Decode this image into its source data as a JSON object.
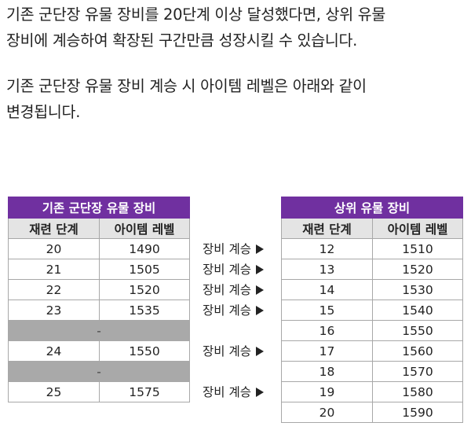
{
  "paragraphs": [
    [
      "기존 군단장 유물 장비를 20단계 이상 달성했다면, 상위 유물",
      "장비에 계승하여 확장된 구간만큼 성장시킬 수 있습니다."
    ],
    [
      "기존 군단장 유물 장비 계승 시 아이템 레벨은 아래와 같이",
      "변경됩니다."
    ]
  ],
  "left_table": {
    "title": "기존 군단장 유물 장비",
    "headers": [
      "재련 단계",
      "아이템 레벨"
    ],
    "rows": [
      {
        "stage": "20",
        "level": "1490"
      },
      {
        "stage": "21",
        "level": "1505"
      },
      {
        "stage": "22",
        "level": "1520"
      },
      {
        "stage": "23",
        "level": "1535"
      },
      {
        "gap": "-"
      },
      {
        "stage": "24",
        "level": "1550"
      },
      {
        "gap": "-"
      },
      {
        "stage": "25",
        "level": "1575"
      }
    ]
  },
  "right_table": {
    "title": "상위 유물 장비",
    "headers": [
      "재련 단계",
      "아이템 레벨"
    ],
    "rows": [
      {
        "stage": "12",
        "level": "1510"
      },
      {
        "stage": "13",
        "level": "1520"
      },
      {
        "stage": "14",
        "level": "1530"
      },
      {
        "stage": "15",
        "level": "1540"
      },
      {
        "stage": "16",
        "level": "1550"
      },
      {
        "stage": "17",
        "level": "1560"
      },
      {
        "stage": "18",
        "level": "1570"
      },
      {
        "stage": "19",
        "level": "1580"
      },
      {
        "stage": "20",
        "level": "1590"
      }
    ]
  },
  "arrow_label": "장비 계승",
  "arrow_rows": [
    0,
    1,
    2,
    3,
    5,
    7
  ],
  "colors": {
    "title_bg": "#7030a0",
    "header_bg": "#e4e4e4",
    "gap_bg": "#a9a9a9"
  }
}
